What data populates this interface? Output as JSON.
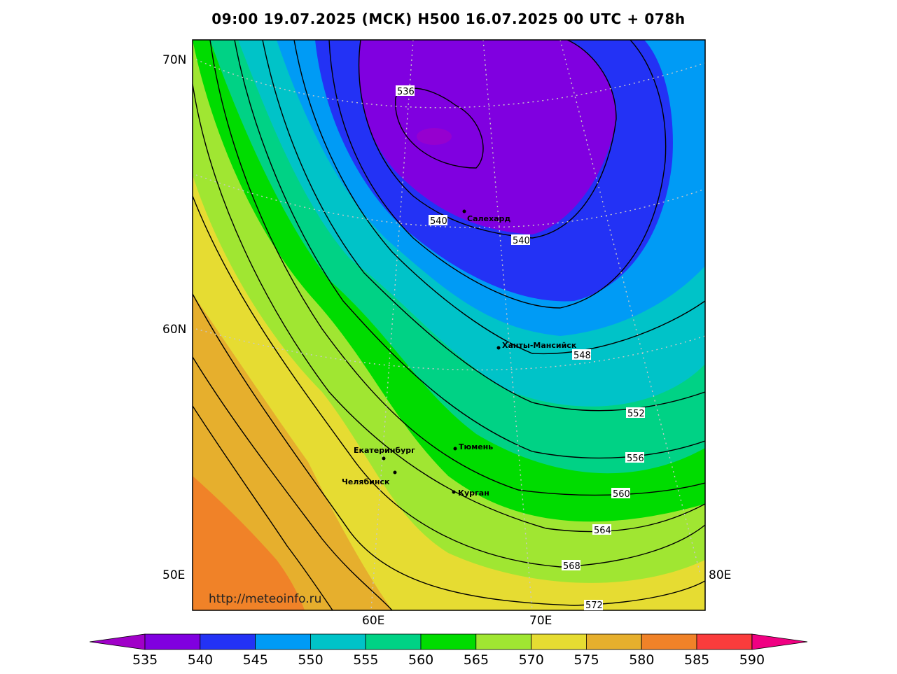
{
  "title": "09:00 19.07.2025 (МСК) H500  16.07.2025 00 UTC + 078h",
  "map": {
    "projection_labels": {
      "lat_top": "70N",
      "lat_mid": "60N",
      "lon_left": "50E",
      "lon_right": "80E",
      "lon_60": "60E",
      "lon_70": "70E"
    },
    "cities": [
      {
        "name": "Салехард"
      },
      {
        "name": "Ханты-Мансийск"
      },
      {
        "name": "Екатеринбург"
      },
      {
        "name": "Тюмень"
      },
      {
        "name": "Челябинск"
      },
      {
        "name": "Курган"
      }
    ],
    "contour_labels": [
      "536",
      "540",
      "540",
      "548",
      "552",
      "556",
      "560",
      "564",
      "568",
      "572"
    ],
    "watermark": "http://meteoinfo.ru",
    "fill_colors": {
      "lt540": "#8000e0",
      "540_545": "#2332f5",
      "545_550": "#009bf5",
      "550_555": "#00c3c8",
      "555_560": "#00d285",
      "560_565": "#00dc00",
      "565_570": "#a0e632",
      "570_575": "#e6dc32",
      "575_580": "#e6af2d",
      "580_585": "#f08228",
      "585_590": "#fa3c3c"
    }
  },
  "colorbar": {
    "ticks": [
      "535",
      "540",
      "545",
      "550",
      "555",
      "560",
      "565",
      "570",
      "575",
      "580",
      "585",
      "590"
    ],
    "colors": [
      "#a000c8",
      "#8000e0",
      "#2332f5",
      "#009bf5",
      "#00c3c8",
      "#00d285",
      "#00dc00",
      "#a0e632",
      "#e6dc32",
      "#e6af2d",
      "#f08228",
      "#fa3c3c",
      "#f00082"
    ]
  }
}
